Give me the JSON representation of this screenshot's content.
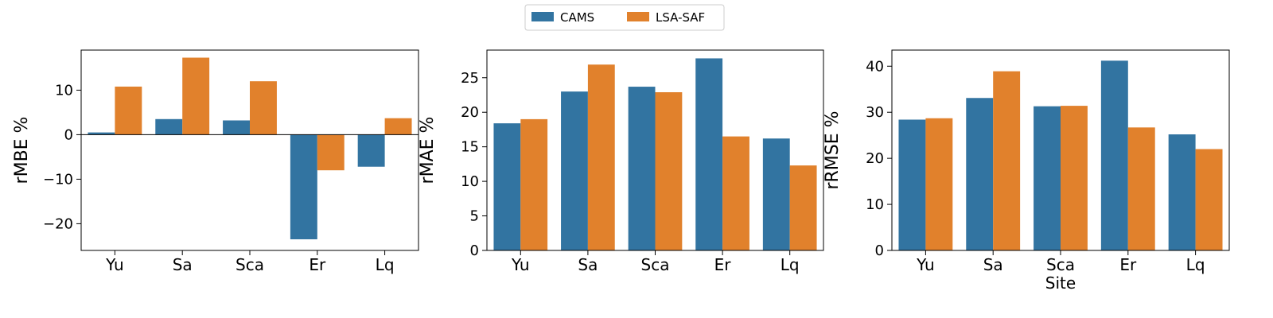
{
  "legend": {
    "placement": "top-center",
    "entries": [
      {
        "label": "CAMS",
        "color": "#3274a1"
      },
      {
        "label": "LSA-SAF",
        "color": "#e1812c"
      }
    ]
  },
  "chart_data": [
    {
      "type": "bar",
      "categories": [
        "Yu",
        "Sa",
        "Sca",
        "Er",
        "Lq"
      ],
      "series": [
        {
          "name": "CAMS",
          "values": [
            0.5,
            3.5,
            3.2,
            -23.5,
            -7.2
          ]
        },
        {
          "name": "LSA-SAF",
          "values": [
            10.8,
            17.3,
            12.0,
            -8.0,
            3.7
          ]
        }
      ],
      "ylabel": "rMBE %",
      "xlabel": "",
      "ylim": [
        -26,
        19
      ],
      "yticks": [
        -20,
        -10,
        0,
        10
      ],
      "ytick_labels": [
        "−20",
        "−10",
        "0",
        "10"
      ],
      "grid": false
    },
    {
      "type": "bar",
      "categories": [
        "Yu",
        "Sa",
        "Sca",
        "Er",
        "Lq"
      ],
      "series": [
        {
          "name": "CAMS",
          "values": [
            18.4,
            23.0,
            23.7,
            27.8,
            16.2
          ]
        },
        {
          "name": "LSA-SAF",
          "values": [
            19.0,
            26.9,
            22.9,
            16.5,
            12.3
          ]
        }
      ],
      "ylabel": "rMAE %",
      "xlabel": "",
      "ylim": [
        0,
        29
      ],
      "yticks": [
        0,
        5,
        10,
        15,
        20,
        25
      ],
      "ytick_labels": [
        "0",
        "5",
        "10",
        "15",
        "20",
        "25"
      ],
      "grid": false
    },
    {
      "type": "bar",
      "categories": [
        "Yu",
        "Sa",
        "Sca",
        "Er",
        "Lq"
      ],
      "series": [
        {
          "name": "CAMS",
          "values": [
            28.4,
            33.1,
            31.3,
            41.2,
            25.2
          ]
        },
        {
          "name": "LSA-SAF",
          "values": [
            28.7,
            38.9,
            31.4,
            26.7,
            22.0
          ]
        }
      ],
      "ylabel": "rRMSE %",
      "xlabel": "Site",
      "ylim": [
        0,
        43.5
      ],
      "yticks": [
        0,
        10,
        20,
        30,
        40
      ],
      "ytick_labels": [
        "0",
        "10",
        "20",
        "30",
        "40"
      ],
      "grid": false
    }
  ]
}
